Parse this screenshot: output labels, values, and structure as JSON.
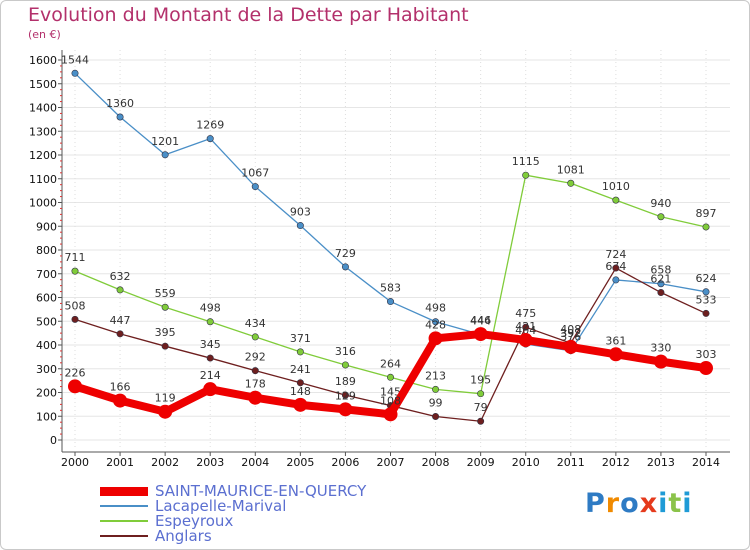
{
  "chart_data": {
    "type": "line",
    "title": "Evolution du Montant de la Dette par Habitant",
    "unit_label": "(en €)",
    "xlabel": "",
    "ylabel": "",
    "categories": [
      "2000",
      "2001",
      "2002",
      "2003",
      "2004",
      "2005",
      "2006",
      "2007",
      "2008",
      "2009",
      "2010",
      "2011",
      "2012",
      "2013",
      "2014"
    ],
    "ylim": [
      0,
      1600
    ],
    "yticks": [
      0,
      100,
      200,
      300,
      400,
      500,
      600,
      700,
      800,
      900,
      1000,
      1100,
      1200,
      1300,
      1400,
      1500,
      1600
    ],
    "series": [
      {
        "name": "Lacapelle-Marival",
        "color": "#4a8fc7",
        "values": [
          1544,
          1360,
          1201,
          1269,
          1067,
          903,
          729,
          583,
          498,
          444,
          404,
          376,
          674,
          658,
          624
        ],
        "labels": [
          "1544",
          "1360",
          "1201",
          "1269",
          "1067",
          "903",
          "729",
          "583",
          "498",
          "444",
          "404",
          "376",
          "674",
          "658",
          "624"
        ]
      },
      {
        "name": "Espeyroux",
        "color": "#80cc3a",
        "values": [
          711,
          632,
          559,
          498,
          434,
          371,
          316,
          264,
          213,
          195,
          1115,
          1081,
          1010,
          940,
          897
        ],
        "labels": [
          "711",
          "632",
          "559",
          "498",
          "434",
          "371",
          "316",
          "264",
          "213",
          "195",
          "1115",
          "1081",
          "1010",
          "940",
          "897"
        ]
      },
      {
        "name": "Anglars",
        "color": "#6e1f1f",
        "values": [
          508,
          447,
          395,
          345,
          292,
          241,
          189,
          145,
          99,
          79,
          475,
          408,
          724,
          621,
          533
        ],
        "labels": [
          "508",
          "447",
          "395",
          "345",
          "292",
          "241",
          "189",
          "145",
          "99",
          "79",
          "475",
          "408",
          "724",
          "621",
          "533"
        ]
      },
      {
        "name": "SAINT-MAURICE-EN-QUERCY",
        "color": "#ee0000",
        "values": [
          226,
          166,
          119,
          214,
          178,
          148,
          129,
          108,
          428,
          446,
          421,
          392,
          361,
          330,
          303
        ],
        "labels": [
          "226",
          "166",
          "119",
          "214",
          "178",
          "148",
          "129",
          "108",
          "428",
          "446",
          "421",
          "392",
          "361",
          "330",
          "303"
        ]
      }
    ]
  },
  "legend": {
    "items": [
      {
        "label": "SAINT-MAURICE-EN-QUERCY",
        "color": "#ee0000"
      },
      {
        "label": "Lacapelle-Marival",
        "color": "#4a8fc7"
      },
      {
        "label": "Espeyroux",
        "color": "#80cc3a"
      },
      {
        "label": "Anglars",
        "color": "#6e1f1f"
      }
    ]
  },
  "logo": {
    "letters": [
      "P",
      "r",
      "o",
      "x",
      "i",
      "t",
      "i"
    ],
    "colors": [
      "#2e7bc4",
      "#f08a00",
      "#2e7bc4",
      "#e53a1c",
      "#1f9bd6",
      "#8bc34a",
      "#1f9bd6"
    ]
  }
}
